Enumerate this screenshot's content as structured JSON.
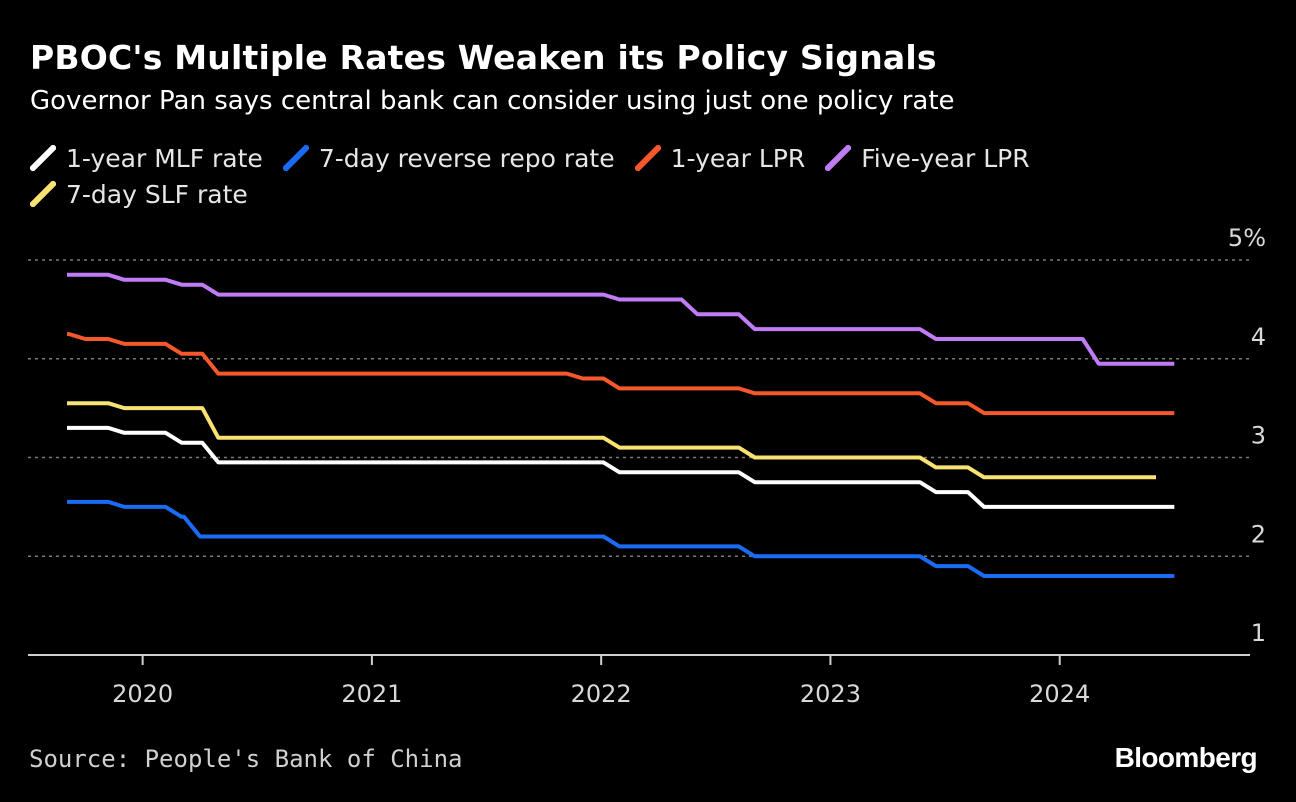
{
  "title": "PBOC's Multiple Rates Weaken its Policy Signals",
  "subtitle": "Governor Pan says central bank can consider using just one policy rate",
  "source": "Source: People's Bank of China",
  "brand": "Bloomberg",
  "chart_data": {
    "type": "line",
    "title": "PBOC's Multiple Rates Weaken its Policy Signals",
    "subtitle": "Governor Pan says central bank can consider using just one policy rate",
    "xlabel": "",
    "ylabel": "",
    "x_ticks": [
      "2020",
      "2021",
      "2022",
      "2023",
      "2024"
    ],
    "x_tick_values": [
      2020,
      2021,
      2022,
      2023,
      2024
    ],
    "xlim": [
      2019.5,
      2024.83
    ],
    "y_ticks": [
      1,
      2,
      3,
      4,
      5
    ],
    "y_tick_labels": [
      "1",
      "2",
      "3",
      "4",
      "5%"
    ],
    "ylim": [
      1,
      5
    ],
    "grid": "dotted horizontal at 2, 3, 4, 5",
    "y_axis_position": "right",
    "legend_position": "top-left",
    "series": [
      {
        "name": "1-year MLF rate",
        "color": "#ffffff",
        "points": [
          [
            2019.67,
            3.3
          ],
          [
            2019.92,
            3.25
          ],
          [
            2020.17,
            3.15
          ],
          [
            2020.33,
            2.95
          ],
          [
            2022.08,
            2.85
          ],
          [
            2022.67,
            2.75
          ],
          [
            2023.46,
            2.65
          ],
          [
            2023.67,
            2.5
          ],
          [
            2024.5,
            2.5
          ]
        ]
      },
      {
        "name": "7-day reverse repo rate",
        "color": "#1a6cf5",
        "points": [
          [
            2019.67,
            2.55
          ],
          [
            2019.92,
            2.5
          ],
          [
            2020.17,
            2.4
          ],
          [
            2020.25,
            2.2
          ],
          [
            2022.08,
            2.1
          ],
          [
            2022.67,
            2.0
          ],
          [
            2023.46,
            1.9
          ],
          [
            2023.67,
            1.8
          ],
          [
            2024.5,
            1.8
          ]
        ]
      },
      {
        "name": "1-year LPR",
        "color": "#f4582b",
        "points": [
          [
            2019.67,
            4.25
          ],
          [
            2019.75,
            4.2
          ],
          [
            2019.92,
            4.15
          ],
          [
            2020.17,
            4.05
          ],
          [
            2020.33,
            3.85
          ],
          [
            2021.92,
            3.8
          ],
          [
            2022.08,
            3.7
          ],
          [
            2022.67,
            3.65
          ],
          [
            2023.46,
            3.55
          ],
          [
            2023.67,
            3.45
          ],
          [
            2024.5,
            3.45
          ]
        ]
      },
      {
        "name": "Five-year LPR",
        "color": "#c17cf5",
        "points": [
          [
            2019.67,
            4.85
          ],
          [
            2019.92,
            4.8
          ],
          [
            2020.17,
            4.75
          ],
          [
            2020.33,
            4.65
          ],
          [
            2022.08,
            4.6
          ],
          [
            2022.42,
            4.45
          ],
          [
            2022.67,
            4.3
          ],
          [
            2023.46,
            4.2
          ],
          [
            2024.08,
            4.2
          ],
          [
            2024.17,
            3.95
          ],
          [
            2024.5,
            3.95
          ]
        ]
      },
      {
        "name": "7-day SLF rate",
        "color": "#f9e271",
        "points": [
          [
            2019.67,
            3.55
          ],
          [
            2019.92,
            3.5
          ],
          [
            2020.25,
            3.5
          ],
          [
            2020.33,
            3.2
          ],
          [
            2022.08,
            3.1
          ],
          [
            2022.67,
            3.0
          ],
          [
            2023.46,
            2.9
          ],
          [
            2023.67,
            2.8
          ],
          [
            2024.42,
            2.8
          ]
        ]
      }
    ]
  }
}
